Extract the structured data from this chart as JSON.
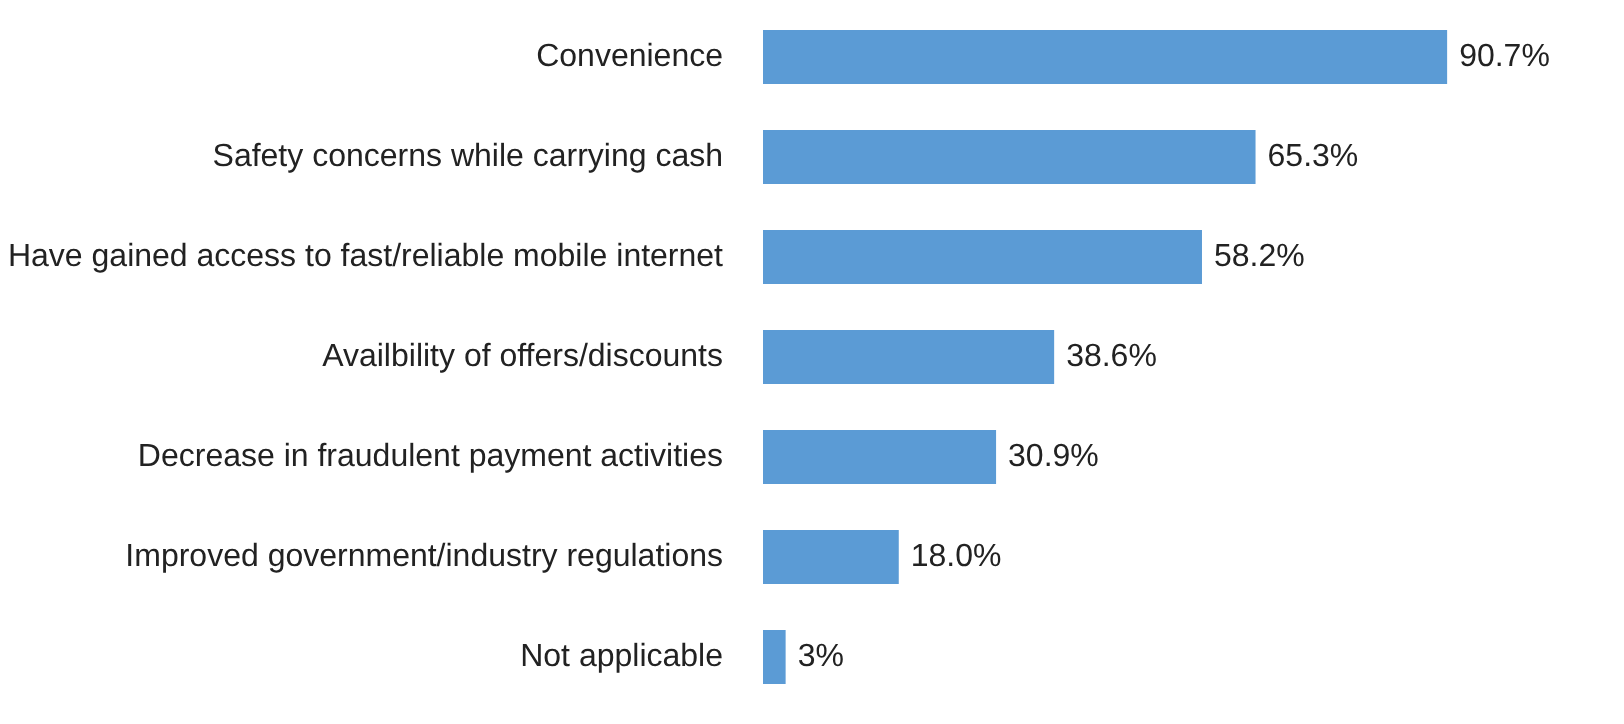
{
  "chart_data": {
    "type": "bar",
    "orientation": "horizontal",
    "categories": [
      "Convenience",
      "Safety concerns while carrying cash",
      "Have gained access to fast/reliable mobile internet",
      "Availbility of offers/discounts",
      "Decrease in fraudulent payment activities",
      "Improved government/industry regulations",
      "Not applicable"
    ],
    "values": [
      90.7,
      65.3,
      58.2,
      38.6,
      30.9,
      18.0,
      3
    ],
    "value_labels": [
      "90.7%",
      "65.3%",
      "58.2%",
      "38.6%",
      "30.9%",
      "18.0%",
      "3%"
    ],
    "color": "#5b9bd5",
    "grid": false
  }
}
